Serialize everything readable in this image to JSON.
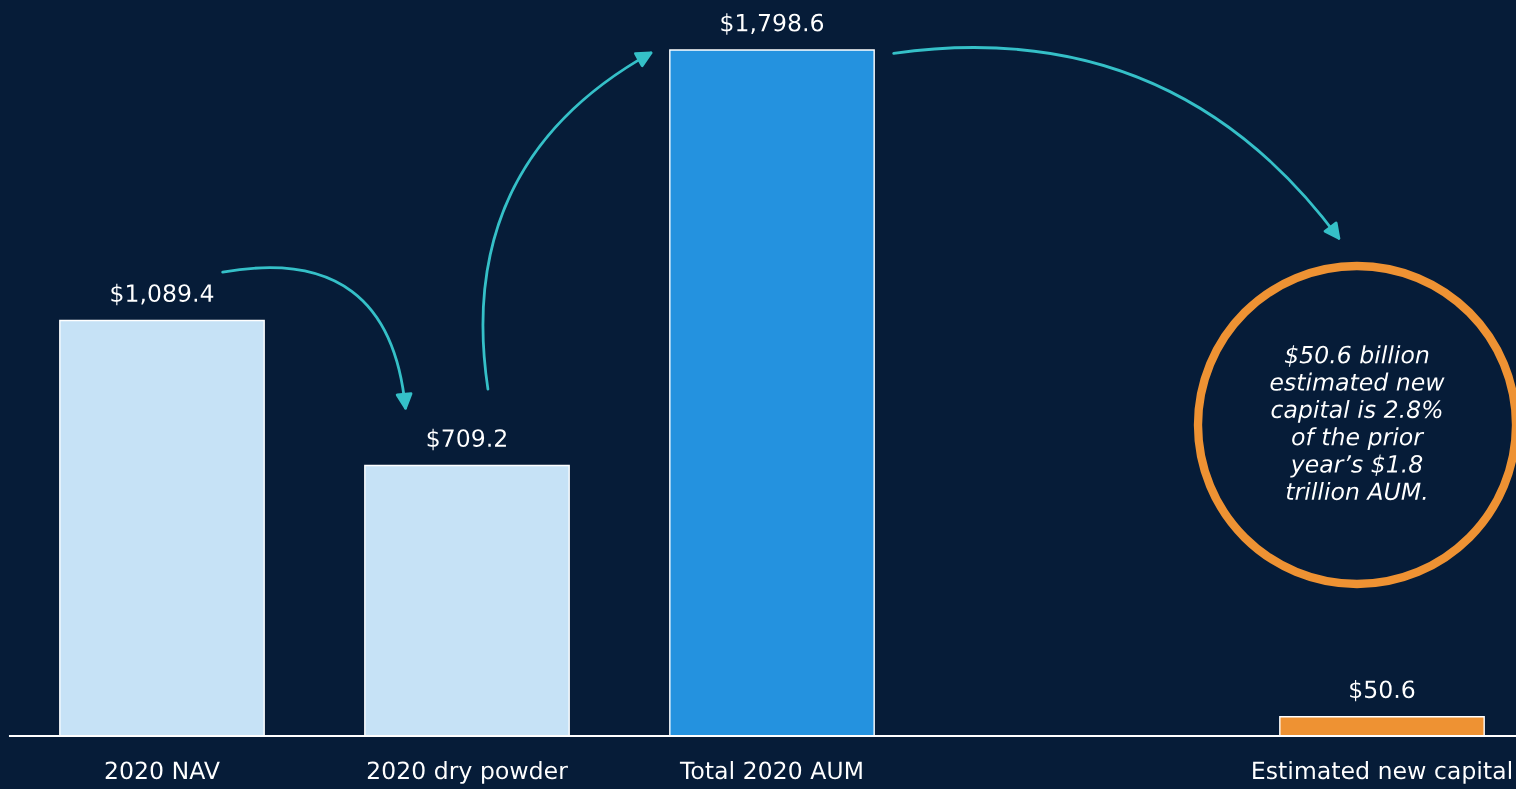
{
  "chart_data": {
    "type": "bar",
    "categories": [
      "2020 NAV",
      "2020 dry powder",
      "Total 2020 AUM",
      null,
      "Estimated new capital"
    ],
    "values": [
      1089.4,
      709.2,
      1798.6,
      null,
      50.6
    ],
    "colors": [
      "#c6e2f6",
      "#c6e2f6",
      "#2492df",
      null,
      "#ee9233"
    ],
    "data_labels": true,
    "value_labels": [
      "$1,089.4",
      "$709.2",
      "$1,798.6",
      null,
      "$50.6"
    ],
    "annotations": [
      "$50.6 billion\nestimated new\ncapital is 2.8%\nof the prior\nyear’s $1.8\ntrillion AUM."
    ],
    "grid": false,
    "legend": false
  }
}
